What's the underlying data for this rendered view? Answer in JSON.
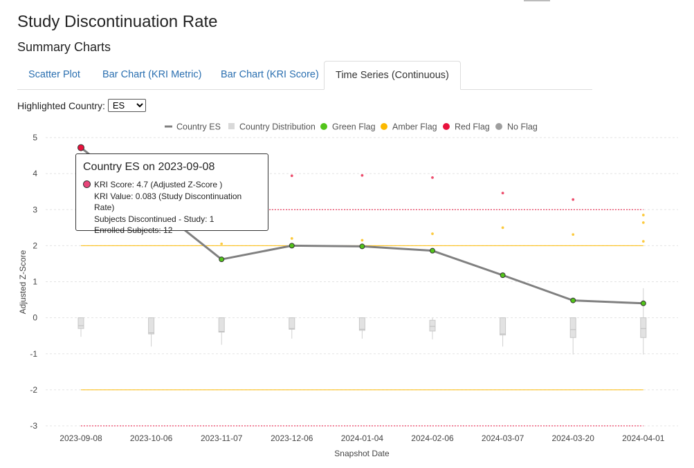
{
  "page": {
    "title": "Study Discontinuation Rate",
    "subtitle": "Summary Charts"
  },
  "tabs": [
    {
      "label": "Scatter Plot",
      "active": false
    },
    {
      "label": "Bar Chart (KRI Metric)",
      "active": false
    },
    {
      "label": "Bar Chart (KRI Score)",
      "active": false
    },
    {
      "label": "Time Series (Continuous)",
      "active": true
    }
  ],
  "country_select": {
    "label": "Highlighted Country:",
    "value": "ES"
  },
  "legend": [
    {
      "label": "Country ES",
      "symbol": "line",
      "color": "#808080"
    },
    {
      "label": "Country Distribution",
      "symbol": "box",
      "color": "#d9d9d9"
    },
    {
      "label": "Green Flag",
      "symbol": "dot",
      "color": "#52c41a"
    },
    {
      "label": "Amber Flag",
      "symbol": "dot",
      "color": "#fcb900"
    },
    {
      "label": "Red Flag",
      "symbol": "dot",
      "color": "#e8123c"
    },
    {
      "label": "No Flag",
      "symbol": "dot",
      "color": "#9e9e9e"
    }
  ],
  "tooltip": {
    "title": "Country ES on 2023-09-08",
    "lines": [
      "KRI Score: 4.7 (Adjusted Z-Score )",
      "KRI Value: 0.083 (Study Discontinuation Rate)",
      "Subjects Discontinued - Study: 1",
      "Enrolled Subjects: 12"
    ]
  },
  "chart_data": {
    "type": "line",
    "xlabel": "Snapshot Date",
    "ylabel": "Adjusted Z-Score",
    "ylim": [
      -3,
      5
    ],
    "yticks": [
      5,
      4,
      3,
      2,
      1,
      0,
      -1,
      -2,
      -3
    ],
    "grid": true,
    "legend_position": "top",
    "categories": [
      "2023-09-08",
      "2023-10-06",
      "2023-11-07",
      "2023-12-06",
      "2024-01-04",
      "2024-02-06",
      "2024-03-07",
      "2024-03-20",
      "2024-04-01"
    ],
    "series": [
      {
        "name": "Country ES",
        "values": [
          4.72,
          null,
          1.62,
          2.0,
          1.98,
          1.86,
          1.18,
          0.48,
          0.4
        ]
      }
    ],
    "highlight_flags": [
      "red",
      null,
      "green",
      "green",
      "green",
      "green",
      "green",
      "green",
      "green"
    ],
    "distribution": [
      {
        "whisker": [
          -0.53,
          0.0
        ],
        "box": [
          -0.3,
          0.0
        ],
        "median": -0.22
      },
      {
        "whisker": [
          -0.8,
          0.0
        ],
        "box": [
          -0.45,
          0.0
        ],
        "median": -0.42
      },
      {
        "whisker": [
          -0.75,
          0.0
        ],
        "box": [
          -0.4,
          0.0
        ],
        "median": -0.38
      },
      {
        "whisker": [
          -0.58,
          0.0
        ],
        "box": [
          -0.32,
          0.0
        ],
        "median": -0.3
      },
      {
        "whisker": [
          -0.58,
          0.0
        ],
        "box": [
          -0.35,
          0.0
        ],
        "median": -0.32
      },
      {
        "whisker": [
          -0.6,
          0.0
        ],
        "box": [
          -0.37,
          -0.07
        ],
        "median": -0.24
      },
      {
        "whisker": [
          -0.8,
          0.0
        ],
        "box": [
          -0.48,
          0.0
        ],
        "median": -0.45
      },
      {
        "whisker": [
          -1.02,
          0.0
        ],
        "box": [
          -0.55,
          0.0
        ],
        "median": -0.33
      },
      {
        "whisker": [
          -1.02,
          0.82
        ],
        "box": [
          -0.55,
          0.0
        ],
        "median": -0.3
      }
    ],
    "other_points": [
      {
        "x": 2,
        "y": 3.88,
        "flag": "none"
      },
      {
        "x": 2,
        "y": 2.05,
        "flag": "amber"
      },
      {
        "x": 3,
        "y": 3.94,
        "flag": "red"
      },
      {
        "x": 3,
        "y": 2.2,
        "flag": "amber"
      },
      {
        "x": 4,
        "y": 3.95,
        "flag": "red"
      },
      {
        "x": 4,
        "y": 2.15,
        "flag": "amber"
      },
      {
        "x": 5,
        "y": 3.89,
        "flag": "red"
      },
      {
        "x": 5,
        "y": 2.33,
        "flag": "amber"
      },
      {
        "x": 6,
        "y": 3.46,
        "flag": "red"
      },
      {
        "x": 6,
        "y": 2.5,
        "flag": "amber"
      },
      {
        "x": 7,
        "y": 3.28,
        "flag": "red"
      },
      {
        "x": 7,
        "y": 2.31,
        "flag": "amber"
      },
      {
        "x": 8,
        "y": 2.85,
        "flag": "amber"
      },
      {
        "x": 8,
        "y": 2.64,
        "flag": "amber"
      },
      {
        "x": 8,
        "y": 2.12,
        "flag": "amber"
      }
    ],
    "thresholds": [
      {
        "value": 3,
        "color": "#e8123c",
        "style": "dotted"
      },
      {
        "value": 2,
        "color": "#fcb900",
        "style": "solid"
      },
      {
        "value": -2,
        "color": "#fcb900",
        "style": "solid"
      },
      {
        "value": -3,
        "color": "#e8123c",
        "style": "dotted"
      }
    ],
    "flag_colors": {
      "green": "#52c41a",
      "amber": "#fcb900",
      "red": "#e8123c",
      "none": "#9e9e9e"
    }
  }
}
